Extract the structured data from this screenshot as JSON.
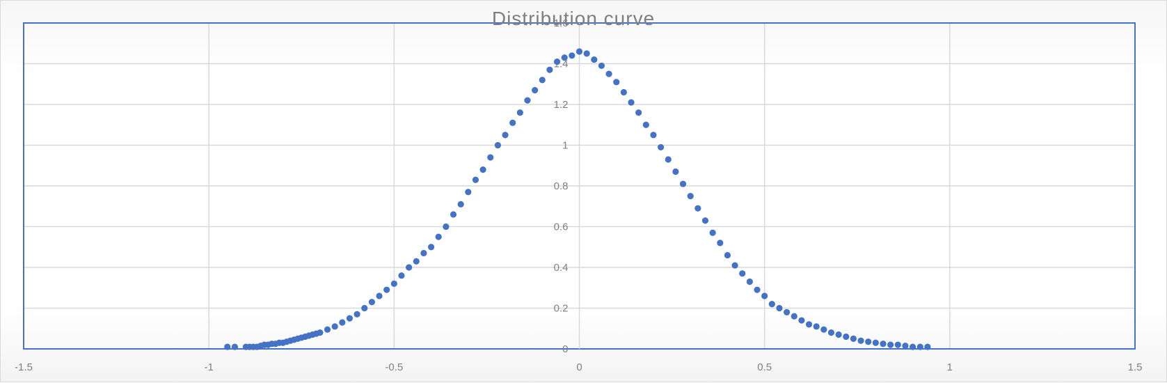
{
  "chart_data": {
    "type": "scatter",
    "title": "Distribution curve",
    "xlabel": "",
    "ylabel": "",
    "xlim": [
      -1.5,
      1.5
    ],
    "ylim": [
      0,
      1.6
    ],
    "x_ticks": [
      "-1.5",
      "-1",
      "-0.5",
      "0",
      "0.5",
      "1",
      "1.5"
    ],
    "y_ticks": [
      "0",
      "0.2",
      "0.4",
      "0.6",
      "0.8",
      "1",
      "1.2",
      "1.4",
      "1.6"
    ],
    "grid": true,
    "legend": "none",
    "marker_color": "#4472C4",
    "gridline_color": "#d9d9d9",
    "plot_border_color": "#4472C4",
    "series": [
      {
        "points": [
          [
            -0.95,
            0.01
          ],
          [
            -0.93,
            0.01
          ],
          [
            -0.9,
            0.01
          ],
          [
            -0.89,
            0.01
          ],
          [
            -0.88,
            0.01
          ],
          [
            -0.87,
            0.01
          ],
          [
            -0.86,
            0.015
          ],
          [
            -0.85,
            0.02
          ],
          [
            -0.84,
            0.02
          ],
          [
            -0.83,
            0.025
          ],
          [
            -0.82,
            0.025
          ],
          [
            -0.81,
            0.03
          ],
          [
            -0.8,
            0.03
          ],
          [
            -0.79,
            0.035
          ],
          [
            -0.78,
            0.04
          ],
          [
            -0.77,
            0.045
          ],
          [
            -0.76,
            0.05
          ],
          [
            -0.75,
            0.055
          ],
          [
            -0.74,
            0.06
          ],
          [
            -0.73,
            0.065
          ],
          [
            -0.72,
            0.07
          ],
          [
            -0.71,
            0.075
          ],
          [
            -0.7,
            0.08
          ],
          [
            -0.68,
            0.095
          ],
          [
            -0.66,
            0.11
          ],
          [
            -0.64,
            0.13
          ],
          [
            -0.62,
            0.15
          ],
          [
            -0.6,
            0.17
          ],
          [
            -0.58,
            0.2
          ],
          [
            -0.56,
            0.23
          ],
          [
            -0.54,
            0.26
          ],
          [
            -0.52,
            0.29
          ],
          [
            -0.5,
            0.32
          ],
          [
            -0.48,
            0.36
          ],
          [
            -0.46,
            0.4
          ],
          [
            -0.44,
            0.43
          ],
          [
            -0.42,
            0.47
          ],
          [
            -0.4,
            0.5
          ],
          [
            -0.38,
            0.55
          ],
          [
            -0.36,
            0.6
          ],
          [
            -0.34,
            0.66
          ],
          [
            -0.32,
            0.71
          ],
          [
            -0.3,
            0.77
          ],
          [
            -0.28,
            0.83
          ],
          [
            -0.26,
            0.88
          ],
          [
            -0.24,
            0.94
          ],
          [
            -0.22,
            1.0
          ],
          [
            -0.2,
            1.05
          ],
          [
            -0.18,
            1.11
          ],
          [
            -0.16,
            1.16
          ],
          [
            -0.14,
            1.22
          ],
          [
            -0.12,
            1.27
          ],
          [
            -0.1,
            1.32
          ],
          [
            -0.08,
            1.37
          ],
          [
            -0.06,
            1.41
          ],
          [
            -0.04,
            1.43
          ],
          [
            -0.02,
            1.44
          ],
          [
            0.0,
            1.46
          ],
          [
            0.02,
            1.45
          ],
          [
            0.04,
            1.42
          ],
          [
            0.06,
            1.39
          ],
          [
            0.08,
            1.35
          ],
          [
            0.1,
            1.31
          ],
          [
            0.12,
            1.26
          ],
          [
            0.14,
            1.21
          ],
          [
            0.16,
            1.16
          ],
          [
            0.18,
            1.1
          ],
          [
            0.2,
            1.05
          ],
          [
            0.22,
            0.99
          ],
          [
            0.24,
            0.93
          ],
          [
            0.26,
            0.87
          ],
          [
            0.28,
            0.81
          ],
          [
            0.3,
            0.75
          ],
          [
            0.32,
            0.69
          ],
          [
            0.34,
            0.63
          ],
          [
            0.36,
            0.57
          ],
          [
            0.38,
            0.52
          ],
          [
            0.4,
            0.46
          ],
          [
            0.42,
            0.41
          ],
          [
            0.44,
            0.37
          ],
          [
            0.46,
            0.33
          ],
          [
            0.48,
            0.29
          ],
          [
            0.5,
            0.26
          ],
          [
            0.52,
            0.22
          ],
          [
            0.54,
            0.2
          ],
          [
            0.56,
            0.18
          ],
          [
            0.58,
            0.16
          ],
          [
            0.6,
            0.14
          ],
          [
            0.62,
            0.12
          ],
          [
            0.64,
            0.11
          ],
          [
            0.66,
            0.095
          ],
          [
            0.68,
            0.08
          ],
          [
            0.7,
            0.07
          ],
          [
            0.72,
            0.06
          ],
          [
            0.74,
            0.05
          ],
          [
            0.76,
            0.04
          ],
          [
            0.78,
            0.035
          ],
          [
            0.8,
            0.03
          ],
          [
            0.82,
            0.025
          ],
          [
            0.84,
            0.02
          ],
          [
            0.86,
            0.02
          ],
          [
            0.88,
            0.015
          ],
          [
            0.9,
            0.01
          ],
          [
            0.92,
            0.01
          ],
          [
            0.94,
            0.01
          ]
        ]
      }
    ]
  }
}
